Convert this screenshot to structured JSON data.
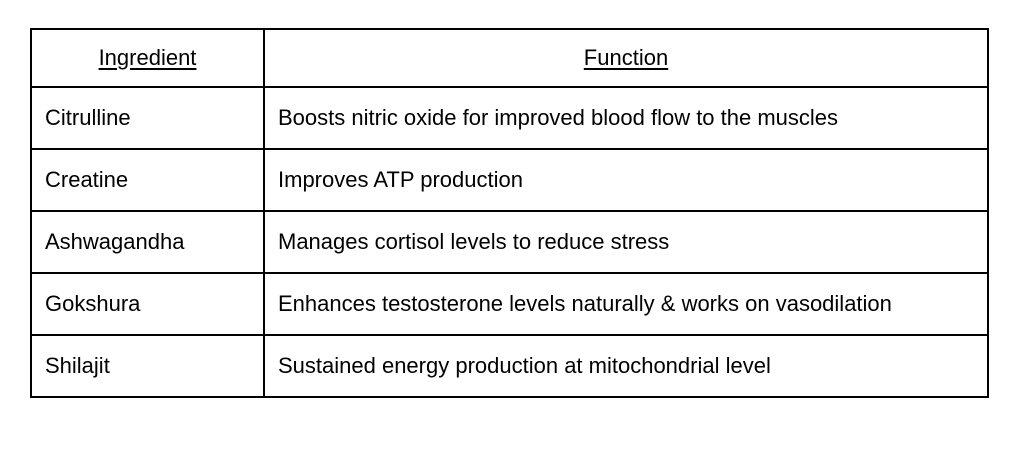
{
  "table": {
    "headers": [
      {
        "label": "Ingredient"
      },
      {
        "label": "Function"
      }
    ],
    "rows": [
      {
        "ingredient": "Citrulline",
        "function": "Boosts nitric oxide for improved blood flow to the muscles"
      },
      {
        "ingredient": "Creatine",
        "function": "Improves ATP production"
      },
      {
        "ingredient": "Ashwagandha",
        "function": "Manages cortisol levels to reduce stress"
      },
      {
        "ingredient": "Gokshura",
        "function": "Enhances testosterone levels naturally & works on vasodilation"
      },
      {
        "ingredient": "Shilajit",
        "function": "Sustained energy production at mitochondrial level"
      }
    ],
    "colors": {
      "border": "#000000",
      "text": "#000000",
      "background": "#ffffff"
    }
  }
}
